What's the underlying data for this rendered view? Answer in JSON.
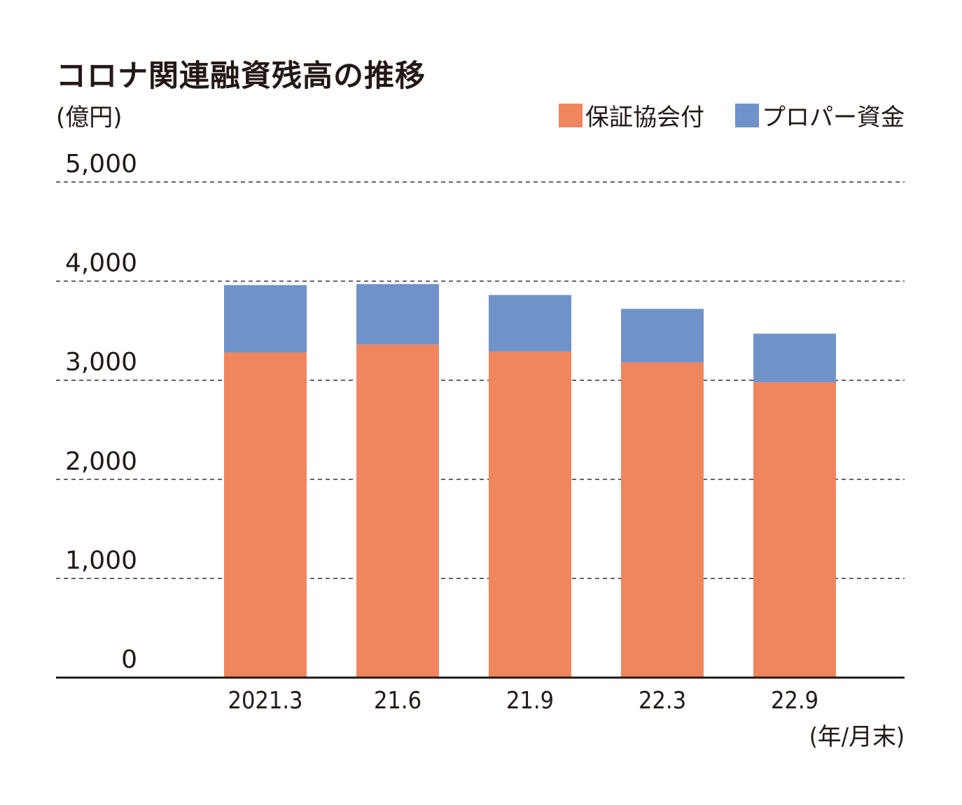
{
  "chart_data": {
    "type": "bar",
    "stacked": true,
    "title": "コロナ関連融資残高の推移",
    "unit_label": "(億円)",
    "x_unit_label": "(年/月末)",
    "categories": [
      "2021.3",
      "21.6",
      "21.9",
      "22.3",
      "22.9"
    ],
    "series": [
      {
        "name": "保証協会付",
        "color": "#f0865e",
        "values": [
          3280,
          3360,
          3290,
          3180,
          2980
        ]
      },
      {
        "name": "プロパー資金",
        "color": "#6f92c9",
        "values": [
          680,
          610,
          570,
          540,
          490
        ]
      }
    ],
    "ylim": [
      0,
      5000
    ],
    "yticks": [
      0,
      1000,
      2000,
      3000,
      4000,
      5000
    ],
    "ytick_labels": [
      "0",
      "1,000",
      "2,000",
      "3,000",
      "4,000",
      "5,000"
    ],
    "grid": true,
    "legend_position": "top-right"
  }
}
